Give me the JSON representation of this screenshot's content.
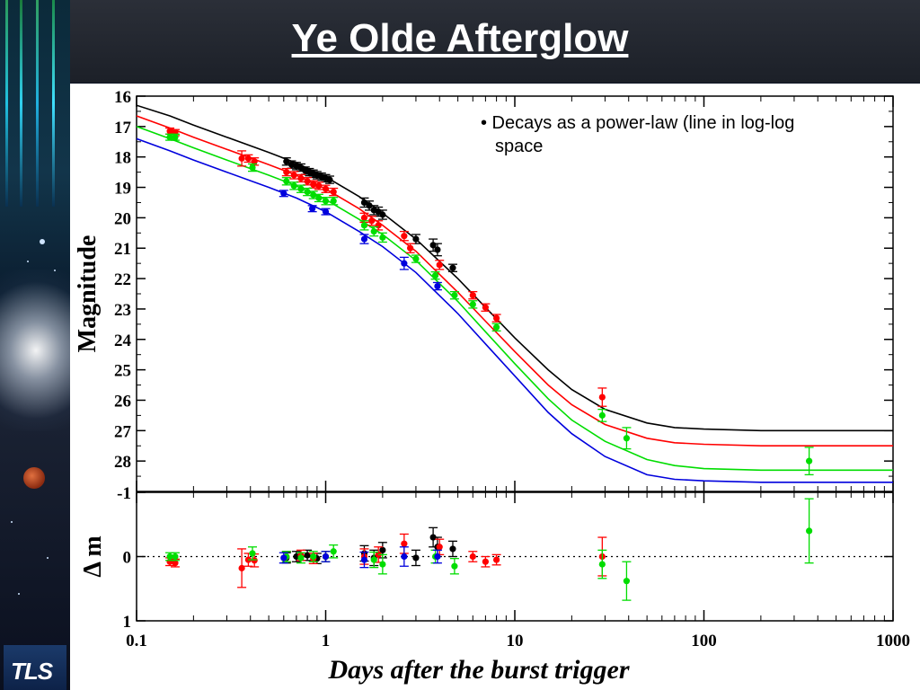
{
  "slide": {
    "title": "Ye Olde Afterglow",
    "annotation_line1": "• Decays as a power-law (line in log-log",
    "annotation_line2": "space",
    "logo_text": "TLS"
  },
  "colors": {
    "black_band": "#000000",
    "red_band": "#ff0000",
    "green_band": "#00dd00",
    "blue_band": "#0000dd"
  },
  "chart_data": [
    {
      "type": "scatter",
      "name": "light-curve",
      "xlabel": "Days after the burst trigger",
      "ylabel": "Magnitude",
      "xscale": "log",
      "xlim": [
        0.1,
        1000
      ],
      "ylim": [
        29.0,
        16.0
      ],
      "y_inverted": true,
      "y_ticks": [
        "16",
        "17",
        "18",
        "19",
        "20",
        "21",
        "22",
        "23",
        "24",
        "25",
        "26",
        "27",
        "28"
      ],
      "x_ticks": [
        "0.1",
        "1",
        "10",
        "100",
        "1000"
      ],
      "series": [
        {
          "color": "#000000",
          "model": {
            "x": [
              0.1,
              0.15,
              0.2,
              0.3,
              0.5,
              0.7,
              1,
              1.5,
              2,
              3,
              5,
              7,
              10,
              15,
              20,
              30,
              50,
              70,
              100,
              200,
              500,
              1000
            ],
            "y": [
              16.3,
              16.65,
              16.95,
              17.35,
              17.85,
              18.2,
              18.65,
              19.3,
              19.85,
              20.7,
              22.0,
              22.95,
              23.95,
              25.0,
              25.65,
              26.3,
              26.75,
              26.9,
              26.95,
              27.0,
              27.0,
              27.0
            ]
          },
          "points": [
            {
              "x": 0.62,
              "y": 18.15,
              "e": 0.12
            },
            {
              "x": 0.66,
              "y": 18.25,
              "e": 0.12
            },
            {
              "x": 0.7,
              "y": 18.3,
              "e": 0.12
            },
            {
              "x": 0.74,
              "y": 18.35,
              "e": 0.12
            },
            {
              "x": 0.78,
              "y": 18.45,
              "e": 0.12
            },
            {
              "x": 0.82,
              "y": 18.5,
              "e": 0.12
            },
            {
              "x": 0.86,
              "y": 18.55,
              "e": 0.12
            },
            {
              "x": 0.9,
              "y": 18.6,
              "e": 0.12
            },
            {
              "x": 0.95,
              "y": 18.65,
              "e": 0.12
            },
            {
              "x": 1.0,
              "y": 18.7,
              "e": 0.12
            },
            {
              "x": 1.05,
              "y": 18.75,
              "e": 0.12
            },
            {
              "x": 1.6,
              "y": 19.5,
              "e": 0.15
            },
            {
              "x": 1.7,
              "y": 19.6,
              "e": 0.15
            },
            {
              "x": 1.8,
              "y": 19.75,
              "e": 0.15
            },
            {
              "x": 1.9,
              "y": 19.8,
              "e": 0.15
            },
            {
              "x": 2.0,
              "y": 19.9,
              "e": 0.15
            },
            {
              "x": 3.0,
              "y": 20.7,
              "e": 0.15
            },
            {
              "x": 3.7,
              "y": 20.9,
              "e": 0.2
            },
            {
              "x": 3.9,
              "y": 21.05,
              "e": 0.2
            },
            {
              "x": 4.7,
              "y": 21.65,
              "e": 0.12
            }
          ]
        },
        {
          "color": "#ff0000",
          "model": {
            "x": [
              0.1,
              0.15,
              0.2,
              0.3,
              0.5,
              0.7,
              1,
              1.5,
              2,
              3,
              5,
              7,
              10,
              15,
              20,
              30,
              50,
              70,
              100,
              200,
              500,
              1000
            ],
            "y": [
              16.65,
              17.05,
              17.35,
              17.75,
              18.25,
              18.6,
              19.05,
              19.7,
              20.25,
              21.1,
              22.45,
              23.4,
              24.4,
              25.5,
              26.15,
              26.8,
              27.25,
              27.4,
              27.45,
              27.5,
              27.5,
              27.5
            ]
          },
          "points": [
            {
              "x": 0.15,
              "y": 17.15,
              "e": 0.1
            },
            {
              "x": 0.16,
              "y": 17.2,
              "e": 0.1
            },
            {
              "x": 0.36,
              "y": 18.05,
              "e": 0.25
            },
            {
              "x": 0.39,
              "y": 18.05,
              "e": 0.12
            },
            {
              "x": 0.42,
              "y": 18.15,
              "e": 0.12
            },
            {
              "x": 0.62,
              "y": 18.5,
              "e": 0.12
            },
            {
              "x": 0.68,
              "y": 18.6,
              "e": 0.12
            },
            {
              "x": 0.74,
              "y": 18.7,
              "e": 0.12
            },
            {
              "x": 0.8,
              "y": 18.8,
              "e": 0.12
            },
            {
              "x": 0.86,
              "y": 18.9,
              "e": 0.12
            },
            {
              "x": 0.92,
              "y": 18.95,
              "e": 0.12
            },
            {
              "x": 1.0,
              "y": 19.05,
              "e": 0.12
            },
            {
              "x": 1.1,
              "y": 19.15,
              "e": 0.12
            },
            {
              "x": 1.6,
              "y": 20.0,
              "e": 0.15
            },
            {
              "x": 1.75,
              "y": 20.1,
              "e": 0.15
            },
            {
              "x": 1.9,
              "y": 20.25,
              "e": 0.15
            },
            {
              "x": 2.6,
              "y": 20.6,
              "e": 0.15
            },
            {
              "x": 2.8,
              "y": 21.0,
              "e": 0.15
            },
            {
              "x": 4.0,
              "y": 21.55,
              "e": 0.15
            },
            {
              "x": 6.0,
              "y": 22.55,
              "e": 0.12
            },
            {
              "x": 7.0,
              "y": 22.95,
              "e": 0.12
            },
            {
              "x": 8.0,
              "y": 23.3,
              "e": 0.12
            },
            {
              "x": 29.0,
              "y": 25.9,
              "e": 0.3
            }
          ]
        },
        {
          "color": "#00dd00",
          "model": {
            "x": [
              0.1,
              0.15,
              0.2,
              0.3,
              0.5,
              0.7,
              1,
              1.5,
              2,
              3,
              5,
              7,
              10,
              15,
              20,
              30,
              50,
              70,
              100,
              200,
              500,
              1000
            ],
            "y": [
              17.0,
              17.4,
              17.7,
              18.1,
              18.6,
              18.95,
              19.4,
              20.05,
              20.55,
              21.4,
              22.75,
              23.75,
              24.8,
              25.95,
              26.65,
              27.35,
              27.95,
              28.15,
              28.25,
              28.3,
              28.3,
              28.3
            ]
          },
          "points": [
            {
              "x": 0.15,
              "y": 17.35,
              "e": 0.1
            },
            {
              "x": 0.16,
              "y": 17.35,
              "e": 0.1
            },
            {
              "x": 0.41,
              "y": 18.35,
              "e": 0.12
            },
            {
              "x": 0.62,
              "y": 18.8,
              "e": 0.12
            },
            {
              "x": 0.68,
              "y": 18.95,
              "e": 0.12
            },
            {
              "x": 0.74,
              "y": 19.05,
              "e": 0.12
            },
            {
              "x": 0.8,
              "y": 19.15,
              "e": 0.12
            },
            {
              "x": 0.86,
              "y": 19.25,
              "e": 0.12
            },
            {
              "x": 0.92,
              "y": 19.35,
              "e": 0.12
            },
            {
              "x": 1.0,
              "y": 19.45,
              "e": 0.12
            },
            {
              "x": 1.1,
              "y": 19.45,
              "e": 0.12
            },
            {
              "x": 1.6,
              "y": 20.25,
              "e": 0.15
            },
            {
              "x": 1.8,
              "y": 20.45,
              "e": 0.15
            },
            {
              "x": 2.0,
              "y": 20.65,
              "e": 0.15
            },
            {
              "x": 3.0,
              "y": 21.35,
              "e": 0.12
            },
            {
              "x": 3.8,
              "y": 21.9,
              "e": 0.12
            },
            {
              "x": 4.8,
              "y": 22.55,
              "e": 0.12
            },
            {
              "x": 6.0,
              "y": 22.85,
              "e": 0.12
            },
            {
              "x": 8.0,
              "y": 23.6,
              "e": 0.12
            },
            {
              "x": 29.0,
              "y": 26.5,
              "e": 0.2
            },
            {
              "x": 39.0,
              "y": 27.25,
              "e": 0.35
            },
            {
              "x": 360.0,
              "y": 28.0,
              "e": 0.45
            }
          ]
        },
        {
          "color": "#0000dd",
          "model": {
            "x": [
              0.1,
              0.15,
              0.2,
              0.3,
              0.5,
              0.7,
              1,
              1.5,
              2,
              3,
              5,
              7,
              10,
              15,
              20,
              30,
              50,
              70,
              100,
              200,
              500,
              1000
            ],
            "y": [
              17.4,
              17.8,
              18.1,
              18.5,
              19.0,
              19.35,
              19.8,
              20.45,
              20.95,
              21.8,
              23.15,
              24.15,
              25.2,
              26.4,
              27.1,
              27.85,
              28.45,
              28.6,
              28.65,
              28.7,
              28.7,
              28.7
            ]
          },
          "points": [
            {
              "x": 0.6,
              "y": 19.2,
              "e": 0.1
            },
            {
              "x": 0.85,
              "y": 19.7,
              "e": 0.1
            },
            {
              "x": 1.0,
              "y": 19.8,
              "e": 0.1
            },
            {
              "x": 1.6,
              "y": 20.7,
              "e": 0.15
            },
            {
              "x": 2.6,
              "y": 21.5,
              "e": 0.2
            },
            {
              "x": 3.9,
              "y": 22.25,
              "e": 0.12
            }
          ]
        }
      ]
    },
    {
      "type": "scatter",
      "name": "residuals",
      "ylabel": "Δ m",
      "xscale": "log",
      "xlim": [
        0.1,
        1000
      ],
      "ylim": [
        1,
        -1
      ],
      "y_ticks": [
        "-1",
        "0",
        "1"
      ],
      "zero_line": "dotted",
      "series": [
        {
          "color": "#000000",
          "points": [
            {
              "x": 0.62,
              "y": 0.02,
              "e": 0.08
            },
            {
              "x": 0.7,
              "y": 0.0,
              "e": 0.08
            },
            {
              "x": 0.8,
              "y": -0.02,
              "e": 0.08
            },
            {
              "x": 0.9,
              "y": 0.03,
              "e": 0.08
            },
            {
              "x": 1.0,
              "y": 0.0,
              "e": 0.08
            },
            {
              "x": 1.6,
              "y": -0.05,
              "e": 0.12
            },
            {
              "x": 1.8,
              "y": 0.02,
              "e": 0.12
            },
            {
              "x": 2.0,
              "y": -0.1,
              "e": 0.12
            },
            {
              "x": 3.0,
              "y": 0.02,
              "e": 0.12
            },
            {
              "x": 3.7,
              "y": -0.3,
              "e": 0.15
            },
            {
              "x": 3.9,
              "y": -0.15,
              "e": 0.15
            },
            {
              "x": 4.7,
              "y": -0.12,
              "e": 0.12
            }
          ]
        },
        {
          "color": "#ff0000",
          "points": [
            {
              "x": 0.15,
              "y": 0.08,
              "e": 0.06
            },
            {
              "x": 0.16,
              "y": 0.1,
              "e": 0.06
            },
            {
              "x": 0.36,
              "y": 0.18,
              "e": 0.3
            },
            {
              "x": 0.39,
              "y": 0.05,
              "e": 0.1
            },
            {
              "x": 0.42,
              "y": 0.06,
              "e": 0.1
            },
            {
              "x": 0.62,
              "y": 0.0,
              "e": 0.08
            },
            {
              "x": 0.74,
              "y": -0.02,
              "e": 0.08
            },
            {
              "x": 0.86,
              "y": 0.03,
              "e": 0.08
            },
            {
              "x": 1.0,
              "y": 0.0,
              "e": 0.08
            },
            {
              "x": 1.6,
              "y": 0.0,
              "e": 0.12
            },
            {
              "x": 1.9,
              "y": -0.03,
              "e": 0.12
            },
            {
              "x": 2.6,
              "y": -0.2,
              "e": 0.15
            },
            {
              "x": 4.0,
              "y": -0.15,
              "e": 0.12
            },
            {
              "x": 6.0,
              "y": 0.0,
              "e": 0.08
            },
            {
              "x": 7.0,
              "y": 0.08,
              "e": 0.08
            },
            {
              "x": 8.0,
              "y": 0.05,
              "e": 0.08
            },
            {
              "x": 29.0,
              "y": 0.0,
              "e": 0.3
            }
          ]
        },
        {
          "color": "#00dd00",
          "points": [
            {
              "x": 0.15,
              "y": 0.0,
              "e": 0.06
            },
            {
              "x": 0.16,
              "y": 0.0,
              "e": 0.06
            },
            {
              "x": 0.41,
              "y": -0.05,
              "e": 0.1
            },
            {
              "x": 0.62,
              "y": 0.0,
              "e": 0.08
            },
            {
              "x": 0.74,
              "y": 0.02,
              "e": 0.08
            },
            {
              "x": 0.86,
              "y": 0.0,
              "e": 0.08
            },
            {
              "x": 1.0,
              "y": 0.0,
              "e": 0.08
            },
            {
              "x": 1.1,
              "y": -0.08,
              "e": 0.1
            },
            {
              "x": 1.8,
              "y": 0.05,
              "e": 0.12
            },
            {
              "x": 2.0,
              "y": 0.12,
              "e": 0.15
            },
            {
              "x": 3.8,
              "y": 0.0,
              "e": 0.1
            },
            {
              "x": 4.8,
              "y": 0.15,
              "e": 0.12
            },
            {
              "x": 29.0,
              "y": 0.12,
              "e": 0.22
            },
            {
              "x": 39.0,
              "y": 0.38,
              "e": 0.3
            },
            {
              "x": 360.0,
              "y": -0.4,
              "e": 0.5
            }
          ]
        },
        {
          "color": "#0000dd",
          "points": [
            {
              "x": 0.6,
              "y": 0.02,
              "e": 0.08
            },
            {
              "x": 1.0,
              "y": 0.0,
              "e": 0.08
            },
            {
              "x": 1.6,
              "y": 0.05,
              "e": 0.12
            },
            {
              "x": 2.6,
              "y": 0.0,
              "e": 0.15
            },
            {
              "x": 3.9,
              "y": 0.0,
              "e": 0.1
            }
          ]
        }
      ]
    }
  ]
}
